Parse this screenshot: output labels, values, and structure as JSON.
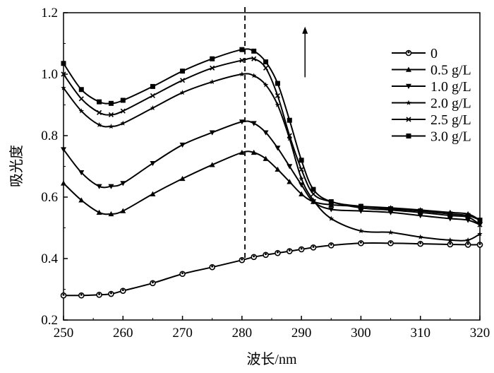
{
  "chart_data": {
    "type": "line",
    "xlabel": "波长/nm",
    "ylabel": "吸光度",
    "xlim": [
      250,
      320
    ],
    "ylim": [
      0.2,
      1.2
    ],
    "xticks": [
      "250",
      "260",
      "270",
      "280",
      "290",
      "300",
      "310",
      "320"
    ],
    "yticks": [
      "0.2",
      "0.4",
      "0.6",
      "0.8",
      "1.0",
      "1.2"
    ],
    "legend_position": "top-right",
    "annotations": {
      "dashed_line_x": 280.5,
      "arrow": {
        "x": 290.6,
        "from_y": 0.99,
        "to_y": 1.15,
        "meaning": "increasing concentration"
      }
    },
    "x": [
      250,
      253,
      256,
      258,
      260,
      265,
      270,
      275,
      280,
      282,
      284,
      286,
      288,
      290,
      292,
      295,
      300,
      305,
      310,
      315,
      318,
      320
    ],
    "series": [
      {
        "name": "0",
        "marker": "circle",
        "values": [
          0.28,
          0.28,
          0.282,
          0.285,
          0.295,
          0.32,
          0.35,
          0.372,
          0.395,
          0.405,
          0.412,
          0.418,
          0.424,
          0.43,
          0.436,
          0.443,
          0.45,
          0.45,
          0.448,
          0.446,
          0.445,
          0.445
        ]
      },
      {
        "name": "0.5 g/L",
        "marker": "triangle-up",
        "values": [
          0.645,
          0.59,
          0.55,
          0.545,
          0.555,
          0.61,
          0.66,
          0.705,
          0.745,
          0.745,
          0.725,
          0.69,
          0.65,
          0.61,
          0.585,
          0.575,
          0.57,
          0.565,
          0.558,
          0.55,
          0.545,
          0.525
        ]
      },
      {
        "name": "1.0 g/L",
        "marker": "triangle-down",
        "values": [
          0.755,
          0.68,
          0.635,
          0.635,
          0.645,
          0.71,
          0.77,
          0.81,
          0.845,
          0.84,
          0.81,
          0.76,
          0.7,
          0.64,
          0.585,
          0.56,
          0.555,
          0.55,
          0.54,
          0.53,
          0.525,
          0.51
        ]
      },
      {
        "name": "2.0 g/L",
        "marker": "star",
        "values": [
          0.955,
          0.88,
          0.835,
          0.83,
          0.84,
          0.89,
          0.94,
          0.975,
          1.0,
          0.995,
          0.965,
          0.9,
          0.79,
          0.66,
          0.59,
          0.53,
          0.49,
          0.485,
          0.47,
          0.46,
          0.46,
          0.48
        ]
      },
      {
        "name": "2.5 g/L",
        "marker": "x",
        "values": [
          1.0,
          0.92,
          0.875,
          0.868,
          0.88,
          0.93,
          0.98,
          1.02,
          1.045,
          1.05,
          1.02,
          0.93,
          0.8,
          0.69,
          0.61,
          0.585,
          0.565,
          0.558,
          0.55,
          0.54,
          0.535,
          0.51
        ]
      },
      {
        "name": "3.0 g/L",
        "marker": "square",
        "values": [
          1.035,
          0.95,
          0.91,
          0.905,
          0.915,
          0.96,
          1.01,
          1.05,
          1.08,
          1.075,
          1.04,
          0.97,
          0.85,
          0.72,
          0.625,
          0.585,
          0.57,
          0.562,
          0.555,
          0.545,
          0.54,
          0.525
        ]
      }
    ]
  }
}
